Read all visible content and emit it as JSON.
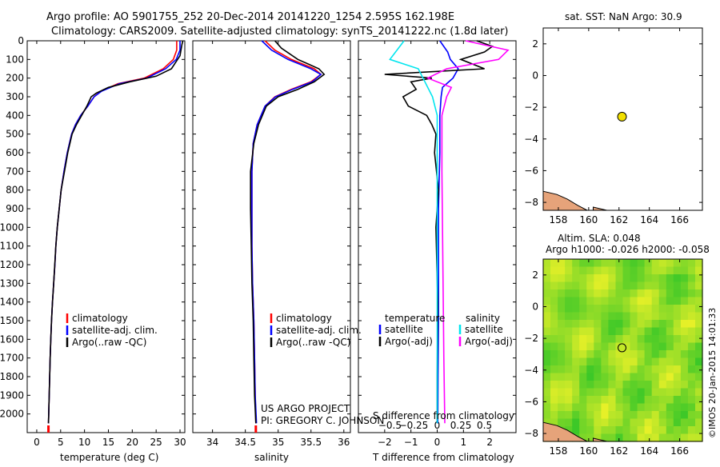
{
  "header": {
    "line1": "Argo profile: AO 5901755_252 20-Dec-2014 20141220_1254 2.595S 162.198E",
    "line2": "Climatology: CARS2009. Satellite-adjusted climatology: synTS_20141222.nc (1.8d later)"
  },
  "colors": {
    "climatology": "#ff0000",
    "satellite": "#0000ff",
    "argo": "#000000",
    "salinity_satellite": "#00e5ee",
    "salinity_argo": "#ff00ff",
    "marker": "#f2e000",
    "land": "#e6a37a"
  },
  "credit": {
    "line1": "US ARGO PROJECT",
    "line2": "PI: GREGORY C. JOHNSON"
  },
  "watermark": "©IMOS 20-Jan-2015 14:01:33",
  "chart_data": [
    {
      "id": "temperature",
      "type": "line",
      "xlabel": "temperature (deg C)",
      "ylabel": "",
      "xlim": [
        -2,
        31
      ],
      "ylim": [
        2100,
        0
      ],
      "xticks": [
        0,
        5,
        10,
        15,
        20,
        25,
        30
      ],
      "yticks": [
        0,
        100,
        200,
        300,
        400,
        500,
        600,
        700,
        800,
        900,
        1000,
        1100,
        1200,
        1300,
        1400,
        1500,
        1600,
        1700,
        1800,
        1900,
        2000
      ],
      "legend": [
        "climatology",
        "satellite-adj. clim.",
        "Argo(..raw -QC)"
      ],
      "series": [
        {
          "name": "climatology",
          "color": "#ff0000",
          "x": [
            29.3,
            29.3,
            28.6,
            26.5,
            22.5,
            17.0,
            13.5,
            12.0,
            10.7,
            9.2,
            8.1,
            7.3,
            6.4,
            5.7,
            5.1,
            4.7,
            4.3,
            4.0,
            3.8,
            3.55,
            3.3,
            3.1,
            2.95,
            2.8,
            2.7,
            2.6,
            2.5,
            2.45
          ],
          "y": [
            0,
            50,
            100,
            150,
            200,
            230,
            270,
            300,
            350,
            400,
            450,
            500,
            600,
            700,
            800,
            900,
            1000,
            1100,
            1200,
            1300,
            1400,
            1500,
            1600,
            1700,
            1800,
            1900,
            2000,
            2050
          ]
        },
        {
          "name": "satellite-adj. clim.",
          "color": "#0000ff",
          "x": [
            30.0,
            30.0,
            29.2,
            27.0,
            23.0,
            17.3,
            13.6,
            12.0,
            10.7,
            9.2,
            8.1,
            7.3,
            6.4,
            5.7,
            5.1,
            4.7,
            4.3,
            4.0,
            3.8,
            3.55,
            3.3,
            3.1,
            2.95,
            2.8,
            2.7,
            2.6,
            2.5,
            2.45
          ],
          "y": [
            0,
            50,
            100,
            150,
            200,
            230,
            270,
            300,
            350,
            400,
            450,
            500,
            600,
            700,
            800,
            900,
            1000,
            1100,
            1200,
            1300,
            1400,
            1500,
            1600,
            1700,
            1800,
            1900,
            2000,
            2050
          ]
        },
        {
          "name": "Argo(..raw -QC)",
          "color": "#000000",
          "x": [
            30.6,
            30.4,
            30.0,
            28.2,
            25.0,
            19.5,
            15.0,
            12.5,
            11.4,
            10.5,
            9.4,
            8.3,
            7.4,
            6.5,
            5.8,
            5.1,
            4.7,
            4.3,
            4.0,
            3.55,
            3.3,
            3.1,
            2.95,
            2.8,
            2.7,
            2.6,
            2.5,
            2.45
          ],
          "y": [
            0,
            20,
            80,
            150,
            190,
            220,
            250,
            280,
            300,
            350,
            400,
            450,
            500,
            600,
            700,
            800,
            900,
            1000,
            1100,
            1300,
            1400,
            1500,
            1600,
            1700,
            1800,
            1900,
            2000,
            2050
          ]
        }
      ]
    },
    {
      "id": "salinity",
      "type": "line",
      "xlabel": "salinity",
      "ylabel": "",
      "xlim": [
        33.7,
        36.1
      ],
      "ylim": [
        2100,
        0
      ],
      "xticks": [
        34,
        34.5,
        35,
        35.5,
        36
      ],
      "legend": [
        "climatology",
        "satellite-adj. clim.",
        "Argo(..raw -QC)"
      ],
      "series": [
        {
          "name": "climatology",
          "color": "#ff0000",
          "x": [
            34.8,
            34.95,
            35.2,
            35.55,
            35.65,
            35.5,
            35.2,
            34.95,
            34.8,
            34.68,
            34.62,
            34.6,
            34.6,
            34.6,
            34.61,
            34.63,
            34.64,
            34.65,
            34.66
          ],
          "y": [
            0,
            50,
            100,
            150,
            180,
            220,
            260,
            300,
            350,
            450,
            550,
            700,
            900,
            1100,
            1300,
            1500,
            1700,
            1900,
            2050
          ]
        },
        {
          "name": "satellite-adj. clim.",
          "color": "#0000ff",
          "x": [
            34.75,
            34.9,
            35.15,
            35.5,
            35.65,
            35.52,
            35.22,
            34.96,
            34.8,
            34.68,
            34.62,
            34.6,
            34.6,
            34.6,
            34.61,
            34.63,
            34.64,
            34.65,
            34.67
          ],
          "y": [
            0,
            50,
            100,
            150,
            180,
            220,
            260,
            300,
            350,
            450,
            550,
            700,
            900,
            1100,
            1300,
            1500,
            1700,
            1900,
            2050
          ]
        },
        {
          "name": "Argo(..raw -QC)",
          "color": "#000000",
          "x": [
            34.95,
            35.05,
            35.3,
            35.62,
            35.7,
            35.55,
            35.3,
            35.0,
            34.82,
            34.7,
            34.63,
            34.58,
            34.58,
            34.59,
            34.6,
            34.62,
            34.63,
            34.64,
            34.66
          ],
          "y": [
            0,
            40,
            100,
            150,
            180,
            220,
            260,
            300,
            350,
            450,
            550,
            700,
            900,
            1100,
            1300,
            1500,
            1700,
            1900,
            2050
          ]
        }
      ]
    },
    {
      "id": "differences",
      "type": "line",
      "xlabel": "T difference from climatology",
      "title_bottom": "S difference from climatology",
      "xlim": [
        -3,
        3
      ],
      "ylim": [
        2100,
        0
      ],
      "xticks": [
        -2,
        -1,
        0,
        1,
        2
      ],
      "s_ticks": [
        -0.5,
        -0.25,
        0,
        0.25,
        0.5
      ],
      "s_tick_labels": [
        "-0.5",
        "-0.25",
        "0",
        "0.25",
        "0.5"
      ],
      "legend_temperature": {
        "title": "temperature",
        "items": [
          "satellite",
          "Argo(-adj)"
        ]
      },
      "legend_salinity": {
        "title": "salinity",
        "items": [
          "satellite",
          "Argo(-adj)"
        ]
      },
      "series": [
        {
          "name": "T satellite",
          "color": "#0000ff",
          "x": [
            0.1,
            0.4,
            0.5,
            0.8,
            0.6,
            0.2,
            0.15,
            0.1,
            0.1,
            0.05,
            0.05,
            0.05,
            0.03,
            0.02
          ],
          "y": [
            0,
            60,
            100,
            150,
            200,
            250,
            300,
            400,
            600,
            900,
            1200,
            1500,
            1800,
            2050
          ]
        },
        {
          "name": "T Argo(-adj)",
          "color": "#000000",
          "x": [
            1.5,
            2.1,
            1.8,
            0.9,
            1.8,
            -2.0,
            -0.2,
            -1.0,
            -0.8,
            -1.3,
            -1.1,
            -0.4,
            -0.2,
            -0.05,
            -0.1,
            0.05,
            -0.05,
            0.02,
            0,
            0
          ],
          "y": [
            0,
            30,
            60,
            100,
            150,
            180,
            200,
            220,
            260,
            300,
            350,
            400,
            450,
            500,
            600,
            800,
            1000,
            1400,
            1800,
            2050
          ]
        },
        {
          "name": "S satellite",
          "color": "#00e5ee",
          "x": [
            -0.35,
            -0.5,
            -0.2,
            -0.15,
            -0.05,
            0,
            0,
            0,
            0,
            0
          ],
          "y": [
            0,
            100,
            150,
            200,
            300,
            400,
            700,
            1100,
            1600,
            2050
          ]
        },
        {
          "name": "S Argo(-adj)",
          "color": "#ff00ff",
          "x": [
            0.3,
            0.75,
            0.65,
            0.1,
            -0.1,
            0.15,
            0.1,
            0.05,
            0.05,
            0.06,
            0.07,
            0.08
          ],
          "y": [
            0,
            50,
            100,
            150,
            200,
            250,
            300,
            400,
            700,
            1200,
            1700,
            2050
          ]
        }
      ]
    },
    {
      "id": "sst_map",
      "type": "scatter",
      "title": "sat. SST: NaN Argo: 30.9",
      "xlim": [
        157,
        167.5
      ],
      "ylim": [
        -8.5,
        3
      ],
      "xticks": [
        158,
        160,
        162,
        164,
        166
      ],
      "yticks": [
        -8,
        -6,
        -4,
        -2,
        0,
        2
      ],
      "points": [
        {
          "x": 162.198,
          "y": -2.595,
          "label": "Argo"
        }
      ]
    },
    {
      "id": "sla_map",
      "type": "heatmap",
      "title_line1": "Altim. SLA: 0.048",
      "title_line2": "Argo h1000: -0.026 h2000: -0.058",
      "xlim": [
        157,
        167.5
      ],
      "ylim": [
        -8.5,
        3
      ],
      "xticks": [
        158,
        160,
        162,
        164,
        166
      ],
      "yticks": [
        -8,
        -6,
        -4,
        -2,
        0,
        2
      ],
      "points": [
        {
          "x": 162.198,
          "y": -2.595,
          "label": "Argo"
        }
      ]
    }
  ]
}
